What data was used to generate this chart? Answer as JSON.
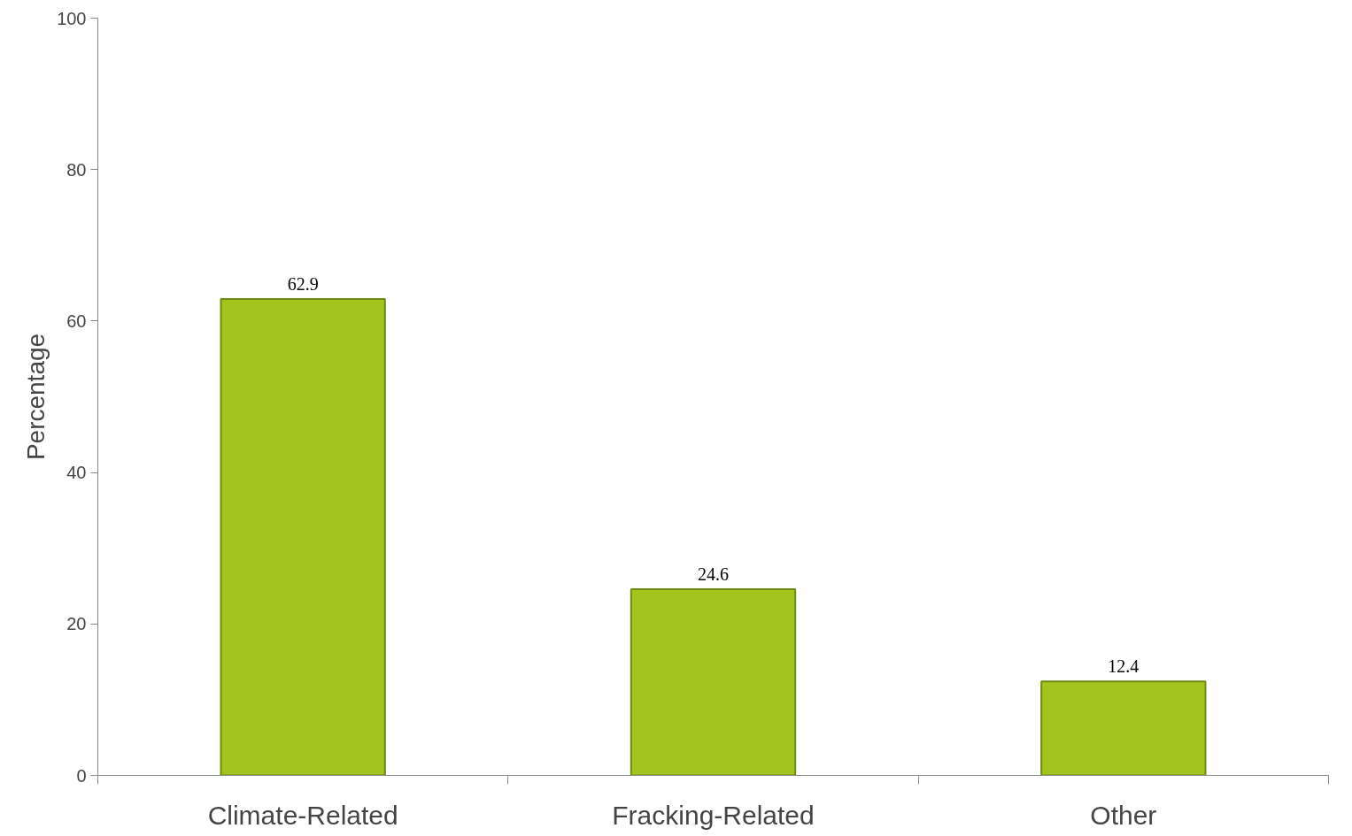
{
  "chart_data": {
    "type": "bar",
    "ylabel": "Percentage",
    "categories": [
      "Climate-Related",
      "Fracking-Related",
      "Other"
    ],
    "values": [
      62.9,
      24.6,
      12.4
    ],
    "color": "#a2c41e",
    "ylim": [
      0,
      100
    ],
    "yticks": [
      0,
      20,
      40,
      60,
      80,
      100
    ],
    "grid": false,
    "data_labels": true
  }
}
